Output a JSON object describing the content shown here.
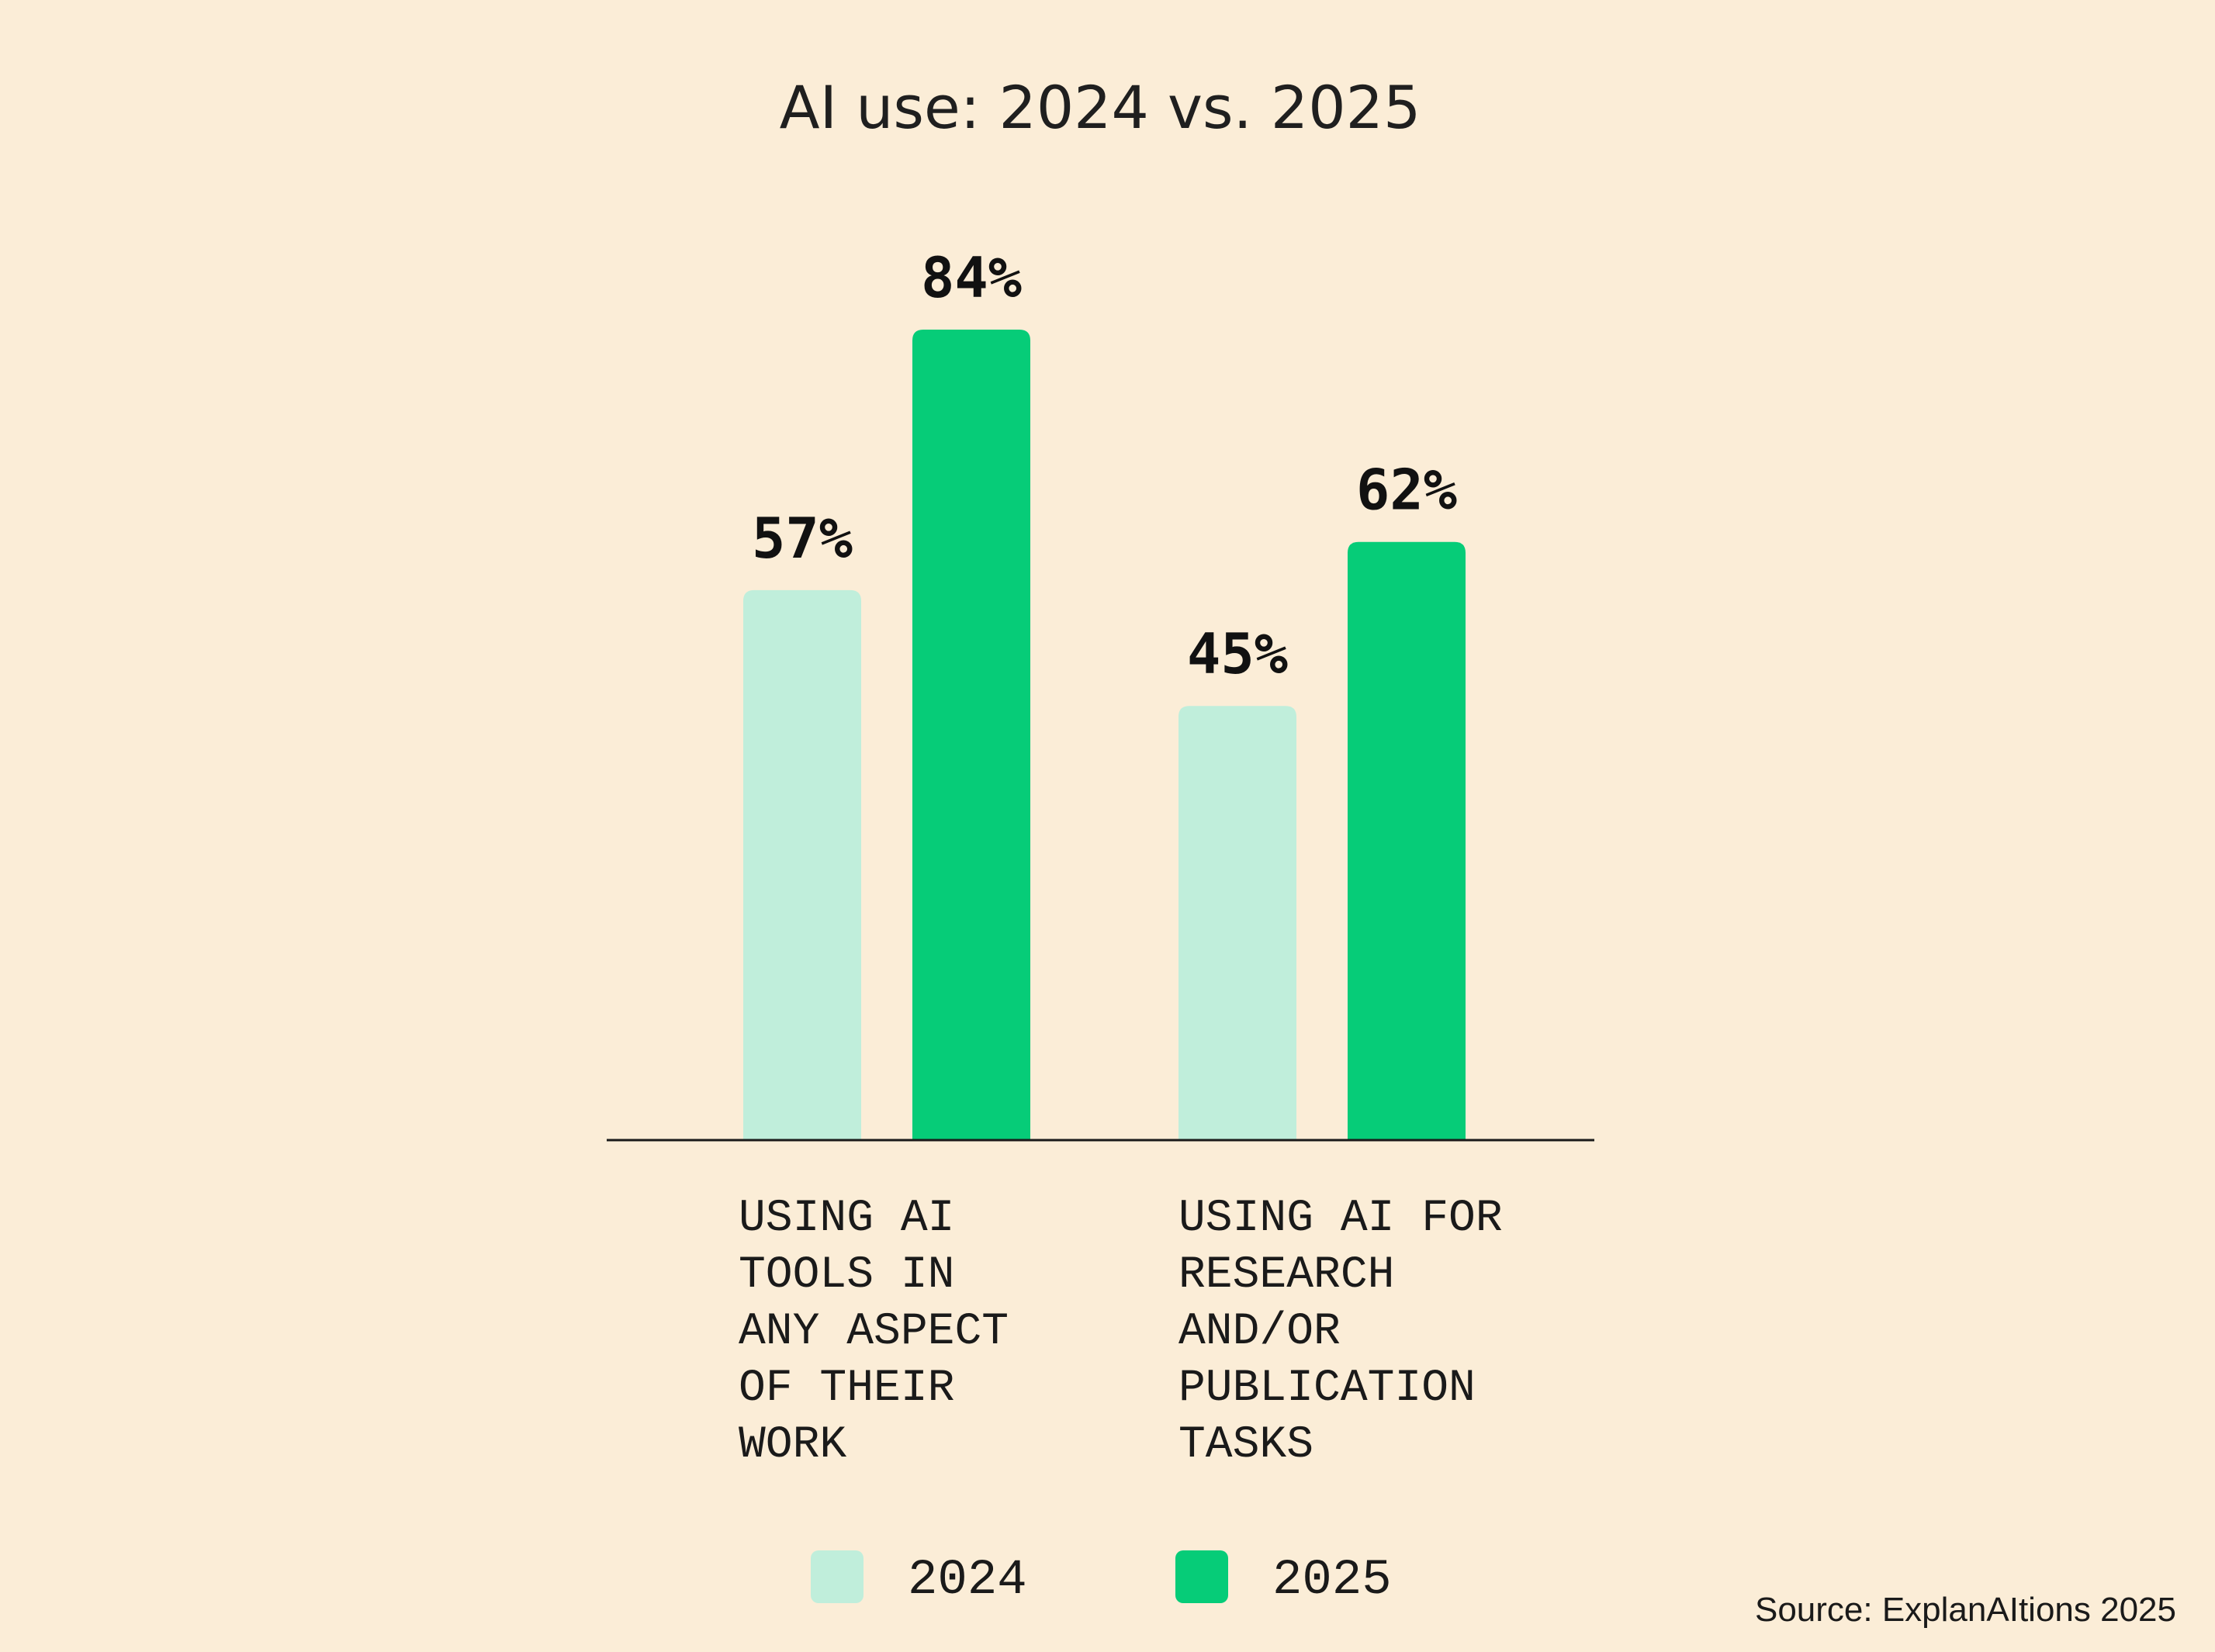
{
  "chart_data": {
    "type": "bar",
    "title": "AI use: 2024 vs. 2025",
    "categories": [
      [
        "USING AI",
        "TOOLS IN",
        "ANY ASPECT",
        "OF THEIR",
        "WORK"
      ],
      [
        "USING AI FOR",
        "RESEARCH",
        "AND/OR",
        "PUBLICATION",
        "TASKS"
      ]
    ],
    "series": [
      {
        "name": "2024",
        "color": "#c0eedb",
        "values": [
          57,
          45
        ],
        "labels": [
          "57%",
          "45%"
        ]
      },
      {
        "name": "2025",
        "color": "#06cc78",
        "values": [
          84,
          62
        ],
        "labels": [
          "84%",
          "62%"
        ]
      }
    ],
    "ylim": [
      0,
      100
    ],
    "grid": false,
    "legend": "bottom-center",
    "xlabel": "",
    "ylabel": ""
  },
  "source": "Source: ExplanAItions 2025"
}
